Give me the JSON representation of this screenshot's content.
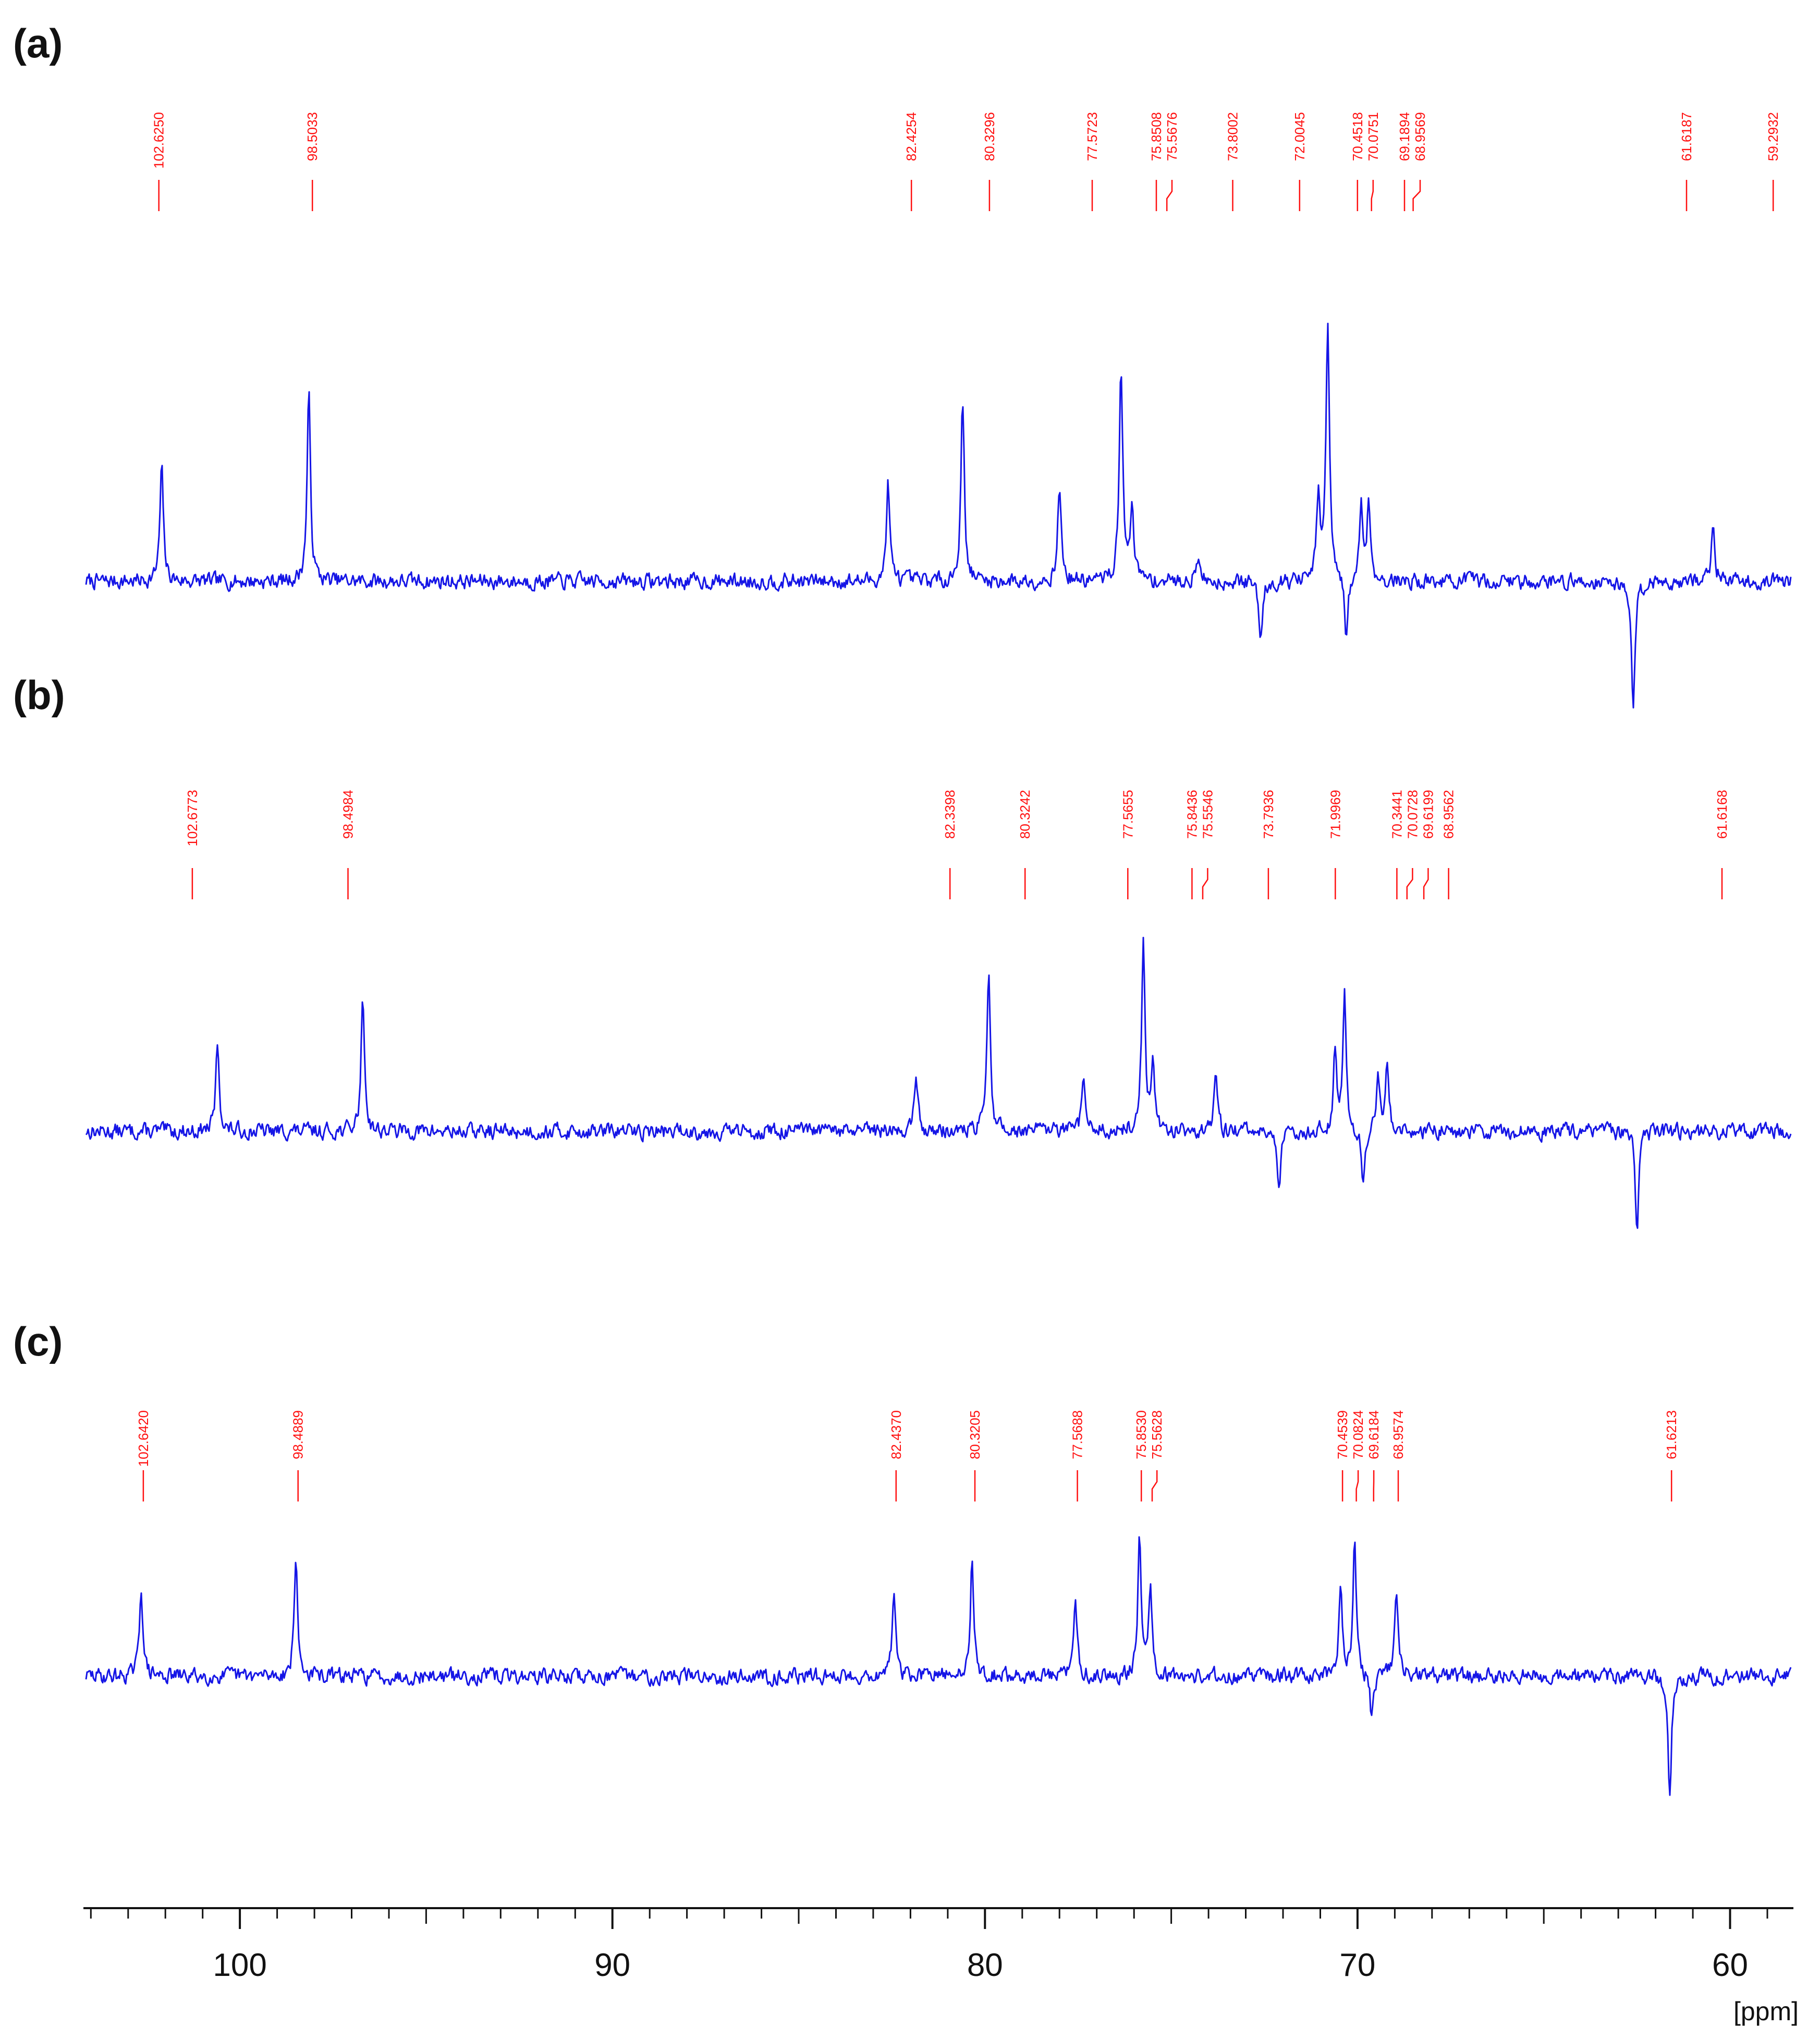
{
  "chart_data": {
    "type": "line",
    "x_unit": "[ppm]",
    "xlim": [
      104.2,
      58.3
    ],
    "x_reversed": true,
    "x_ticks": [
      100,
      90,
      80,
      70,
      60
    ],
    "x_tick_labels": [
      "100",
      "90",
      "80",
      "70",
      "60"
    ],
    "minor_tick_step": 1,
    "colors": {
      "spectrum": "#1515e6",
      "peak_labels": "#ff1010",
      "axis": "#111111"
    },
    "panels": [
      {
        "label": "(a)",
        "peak_labels": [
          "102.6250",
          "98.5033",
          "82.4254",
          "80.3296",
          "77.5723",
          "75.8508",
          "75.5676",
          "73.8002",
          "72.0045",
          "70.4518",
          "70.0751",
          "69.1894",
          "68.9569",
          "61.6187",
          "59.2932"
        ],
        "peaks": [
          {
            "x": 102.1,
            "y": 0.52
          },
          {
            "x": 98.15,
            "y": 0.85
          },
          {
            "x": 82.6,
            "y": 0.45
          },
          {
            "x": 80.6,
            "y": 0.83
          },
          {
            "x": 78.0,
            "y": 0.44
          },
          {
            "x": 76.35,
            "y": 1.0
          },
          {
            "x": 76.05,
            "y": 0.36
          },
          {
            "x": 74.3,
            "y": 0.12
          },
          {
            "x": 72.6,
            "y": -0.27
          },
          {
            "x": 71.05,
            "y": 0.38
          },
          {
            "x": 70.8,
            "y": 1.18
          },
          {
            "x": 70.3,
            "y": -0.28
          },
          {
            "x": 69.9,
            "y": 0.35
          },
          {
            "x": 69.7,
            "y": 0.35
          },
          {
            "x": 62.6,
            "y": -0.6
          },
          {
            "x": 60.45,
            "y": 0.27
          }
        ]
      },
      {
        "label": "(b)",
        "peak_labels": [
          "102.6773",
          "98.4984",
          "82.3398",
          "80.3242",
          "77.5655",
          "75.8436",
          "75.5546",
          "73.7936",
          "71.9969",
          "70.3441",
          "70.0728",
          "69.6199",
          "68.9562",
          "61.6168"
        ],
        "peaks": [
          {
            "x": 100.6,
            "y": 0.4
          },
          {
            "x": 96.7,
            "y": 0.62
          },
          {
            "x": 81.85,
            "y": 0.27
          },
          {
            "x": 79.9,
            "y": 0.73
          },
          {
            "x": 77.35,
            "y": 0.25
          },
          {
            "x": 75.75,
            "y": 0.85
          },
          {
            "x": 75.5,
            "y": 0.3
          },
          {
            "x": 73.8,
            "y": 0.25
          },
          {
            "x": 72.1,
            "y": -0.28
          },
          {
            "x": 70.6,
            "y": 0.38
          },
          {
            "x": 70.35,
            "y": 0.62
          },
          {
            "x": 69.85,
            "y": -0.28
          },
          {
            "x": 69.45,
            "y": 0.28
          },
          {
            "x": 69.2,
            "y": 0.3
          },
          {
            "x": 62.5,
            "y": -0.45
          }
        ]
      },
      {
        "label": "(c)",
        "peak_labels": [
          "102.6420",
          "98.4889",
          "82.4370",
          "80.3205",
          "77.5688",
          "75.8530",
          "75.5628",
          "70.4539",
          "70.0824",
          "69.6184",
          "68.9574",
          "61.6213"
        ],
        "peaks": [
          {
            "x": 102.65,
            "y": 0.41
          },
          {
            "x": 98.5,
            "y": 0.54
          },
          {
            "x": 82.45,
            "y": 0.38
          },
          {
            "x": 80.35,
            "y": 0.52
          },
          {
            "x": 77.57,
            "y": 0.34
          },
          {
            "x": 75.85,
            "y": 0.64
          },
          {
            "x": 75.56,
            "y": 0.42
          },
          {
            "x": 70.45,
            "y": 0.42
          },
          {
            "x": 70.08,
            "y": 0.63
          },
          {
            "x": 69.62,
            "y": -0.2
          },
          {
            "x": 68.96,
            "y": 0.39
          },
          {
            "x": 61.62,
            "y": -0.55
          }
        ]
      }
    ]
  }
}
